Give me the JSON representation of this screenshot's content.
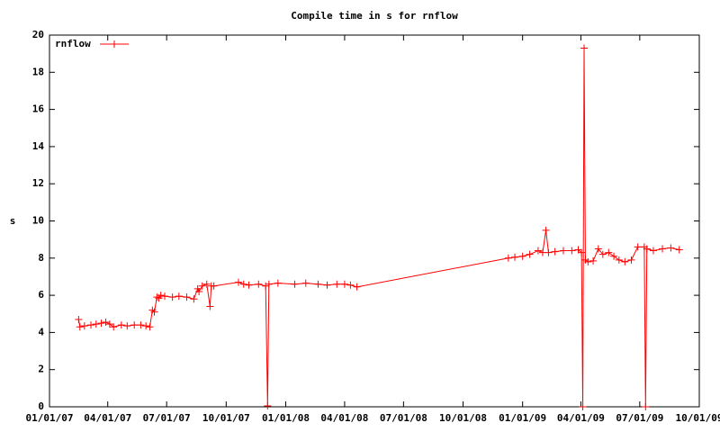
{
  "chart_data": {
    "type": "line",
    "title": "Compile time in s for rnflow",
    "ylabel": "s",
    "x": [
      "2007-02-15",
      "2007-02-17",
      "2007-02-24",
      "2007-03-06",
      "2007-03-14",
      "2007-03-22",
      "2007-03-29",
      "2007-04-04",
      "2007-04-10",
      "2007-04-22",
      "2007-05-01",
      "2007-05-12",
      "2007-05-22",
      "2007-05-30",
      "2007-06-05",
      "2007-06-09",
      "2007-06-12",
      "2007-06-16",
      "2007-06-19",
      "2007-06-22",
      "2007-06-28",
      "2007-07-10",
      "2007-07-20",
      "2007-08-01",
      "2007-08-12",
      "2007-08-18",
      "2007-08-20",
      "2007-08-25",
      "2007-09-01",
      "2007-09-06",
      "2007-09-08",
      "2007-09-12",
      "2007-10-20",
      "2007-10-28",
      "2007-11-05",
      "2007-11-20",
      "2007-12-01",
      "2007-12-04",
      "2007-12-06",
      "2007-12-20",
      "2008-01-15",
      "2008-02-01",
      "2008-02-20",
      "2008-03-05",
      "2008-03-20",
      "2008-04-01",
      "2008-04-10",
      "2008-04-20",
      "2008-12-10",
      "2008-12-20",
      "2009-01-01",
      "2009-01-12",
      "2009-01-25",
      "2009-02-01",
      "2009-02-06",
      "2009-02-10",
      "2009-02-20",
      "2009-03-05",
      "2009-03-18",
      "2009-03-28",
      "2009-04-02",
      "2009-04-04",
      "2009-04-06",
      "2009-04-08",
      "2009-04-12",
      "2009-04-20",
      "2009-04-28",
      "2009-05-05",
      "2009-05-14",
      "2009-05-22",
      "2009-05-30",
      "2009-06-08",
      "2009-06-18",
      "2009-06-28",
      "2009-07-08",
      "2009-07-10",
      "2009-07-12",
      "2009-07-22",
      "2009-08-05",
      "2009-08-18",
      "2009-08-31"
    ],
    "series": [
      {
        "name": "rnflow",
        "color": "#ff0000",
        "values": [
          4.7,
          4.3,
          4.35,
          4.4,
          4.45,
          4.5,
          4.55,
          4.45,
          4.3,
          4.4,
          4.35,
          4.4,
          4.4,
          4.35,
          4.3,
          5.2,
          5.1,
          5.9,
          5.85,
          6.0,
          5.95,
          5.9,
          5.95,
          5.9,
          5.8,
          6.35,
          6.2,
          6.5,
          6.6,
          5.4,
          6.5,
          6.5,
          6.7,
          6.6,
          6.55,
          6.6,
          6.5,
          0.05,
          6.6,
          6.65,
          6.6,
          6.65,
          6.6,
          6.55,
          6.6,
          6.6,
          6.55,
          6.45,
          8.0,
          8.05,
          8.1,
          8.2,
          8.4,
          8.3,
          9.5,
          8.3,
          8.35,
          8.4,
          8.4,
          8.45,
          8.3,
          0,
          19.3,
          7.9,
          7.8,
          7.85,
          8.5,
          8.2,
          8.3,
          8.1,
          7.9,
          7.8,
          7.9,
          8.6,
          8.6,
          0,
          8.5,
          8.4,
          8.5,
          8.55,
          8.45
        ]
      }
    ],
    "xlim": [
      "2007-01-01",
      "2009-10-01"
    ],
    "xticks": [
      {
        "value": "2007-01-01",
        "label": "01/01/07"
      },
      {
        "value": "2007-04-01",
        "label": "04/01/07"
      },
      {
        "value": "2007-07-01",
        "label": "07/01/07"
      },
      {
        "value": "2007-10-01",
        "label": "10/01/07"
      },
      {
        "value": "2008-01-01",
        "label": "01/01/08"
      },
      {
        "value": "2008-04-01",
        "label": "04/01/08"
      },
      {
        "value": "2008-07-01",
        "label": "07/01/08"
      },
      {
        "value": "2008-10-01",
        "label": "10/01/08"
      },
      {
        "value": "2009-01-01",
        "label": "01/01/09"
      },
      {
        "value": "2009-04-01",
        "label": "04/01/09"
      },
      {
        "value": "2009-07-01",
        "label": "07/01/09"
      },
      {
        "value": "2009-10-01",
        "label": "10/01/09"
      }
    ],
    "ylim": [
      0,
      20
    ],
    "yticks": [
      0,
      2,
      4,
      6,
      8,
      10,
      12,
      14,
      16,
      18,
      20
    ],
    "legend": "top-left",
    "markers": true
  }
}
